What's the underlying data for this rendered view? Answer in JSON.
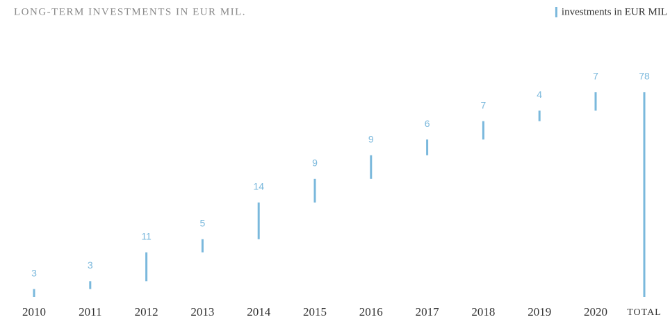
{
  "chart_data": {
    "type": "waterfall",
    "title": "LONG-TERM INVESTMENTS IN EUR MIL.",
    "categories": [
      "2010",
      "2011",
      "2012",
      "2013",
      "2014",
      "2015",
      "2016",
      "2017",
      "2018",
      "2019",
      "2020"
    ],
    "series": [
      {
        "name": "investments in EUR MIL",
        "color": "#7ab8dc",
        "values": [
          3,
          3,
          11,
          5,
          14,
          9,
          9,
          6,
          7,
          4,
          7
        ]
      }
    ],
    "total": {
      "label": "TOTAL",
      "value": 78
    },
    "legend": "top-right"
  }
}
